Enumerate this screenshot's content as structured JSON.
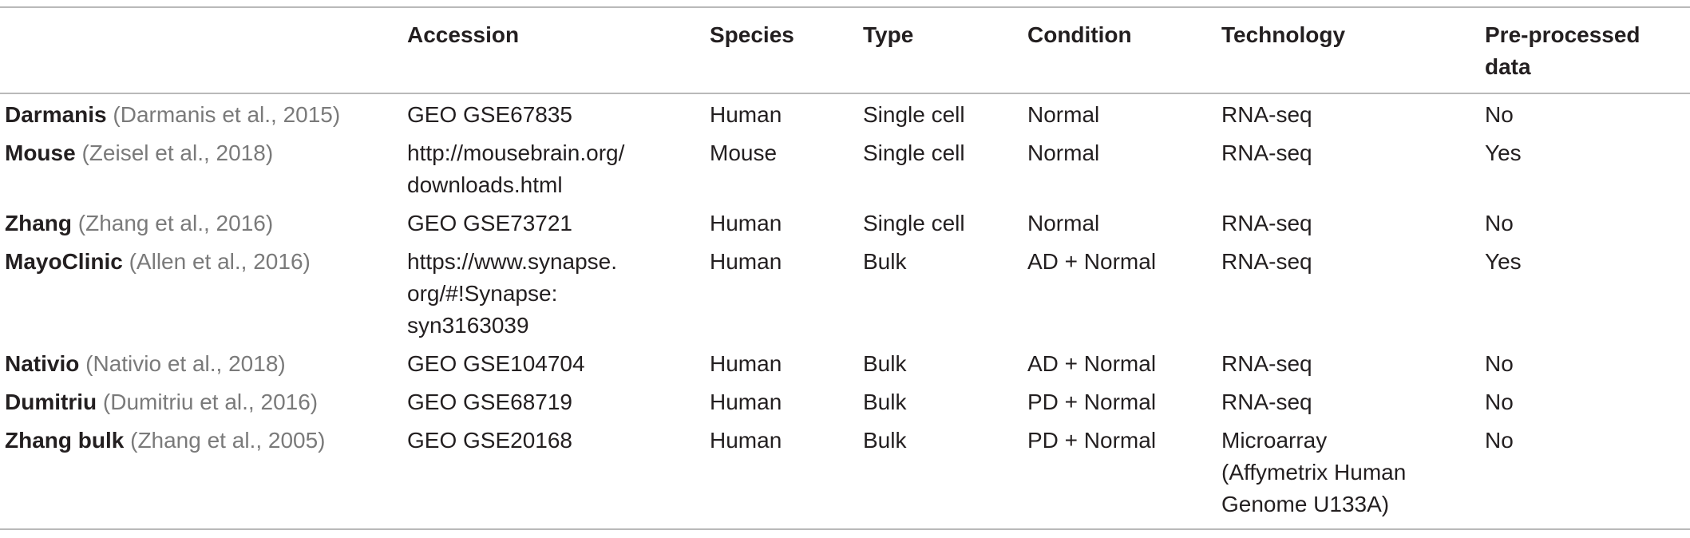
{
  "headers": [
    "",
    "Accession",
    "Species",
    "Type",
    "Condition",
    "Technology",
    "Pre-processed data"
  ],
  "rows": [
    {
      "name": "Darmanis",
      "citation": "Darmanis et al., 2015",
      "accession": "GEO GSE67835",
      "species": "Human",
      "type": "Single cell",
      "condition": "Normal",
      "technology": "RNA-seq",
      "preprocessed": "No"
    },
    {
      "name": "Mouse",
      "citation": "Zeisel et al., 2018",
      "accession": "http://mousebrain.org/\ndownloads.html",
      "species": "Mouse",
      "type": "Single cell",
      "condition": "Normal",
      "technology": "RNA-seq",
      "preprocessed": "Yes"
    },
    {
      "name": "Zhang",
      "citation": "Zhang et al., 2016",
      "accession": "GEO GSE73721",
      "species": "Human",
      "type": "Single cell",
      "condition": "Normal",
      "technology": "RNA-seq",
      "preprocessed": "No"
    },
    {
      "name": "MayoClinic",
      "citation": "Allen et al., 2016",
      "accession": "https://www.synapse.\norg/#!Synapse:\nsyn3163039",
      "species": "Human",
      "type": "Bulk",
      "condition": "AD + Normal",
      "technology": "RNA-seq",
      "preprocessed": "Yes"
    },
    {
      "name": "Nativio",
      "citation": "Nativio et al., 2018",
      "accession": "GEO GSE104704",
      "species": "Human",
      "type": "Bulk",
      "condition": "AD + Normal",
      "technology": "RNA-seq",
      "preprocessed": "No"
    },
    {
      "name": "Dumitriu",
      "citation": "Dumitriu et al., 2016",
      "accession": "GEO GSE68719",
      "species": "Human",
      "type": "Bulk",
      "condition": "PD + Normal",
      "technology": "RNA-seq",
      "preprocessed": "No"
    },
    {
      "name": "Zhang bulk",
      "citation": "Zhang et al., 2005",
      "accession": "GEO GSE20168",
      "species": "Human",
      "type": "Bulk",
      "condition": "PD + Normal",
      "technology": "Microarray\n(Affymetrix Human\nGenome U133A)",
      "preprocessed": "No"
    }
  ]
}
